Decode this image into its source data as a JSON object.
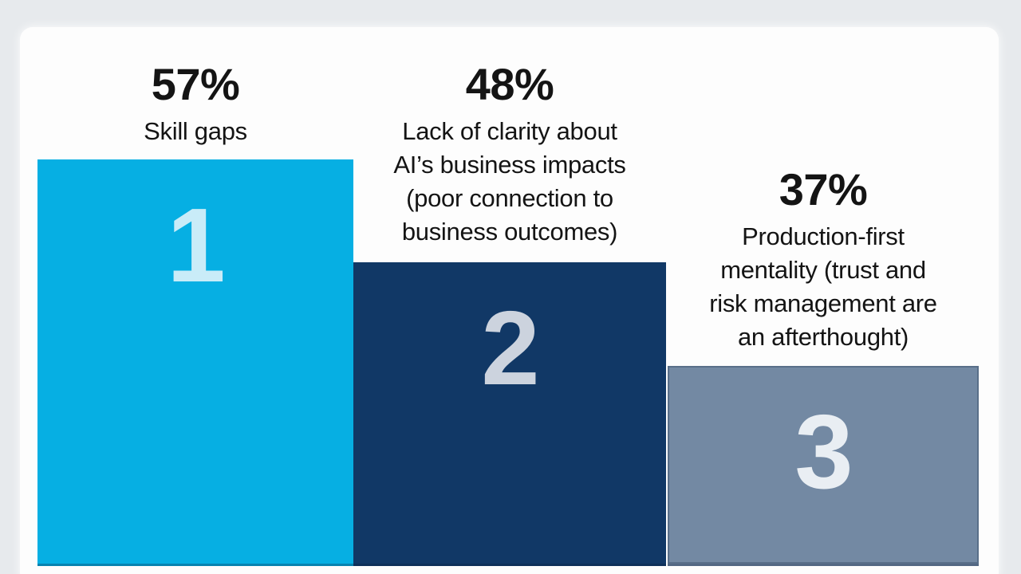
{
  "page": {
    "background_color": "#e7eaed",
    "card_background_color": "#fdfdfd",
    "text_color": "#141414"
  },
  "chart_data": {
    "type": "bar",
    "style": "podium infographic, three adjacent vertical bars descending left to right, rank number inside each bar, percentage and description above each bar",
    "title": "",
    "xlabel": "",
    "ylabel": "",
    "unit": "%",
    "legend": false,
    "axes_visible": false,
    "categories": [
      "Skill gaps",
      "Lack of clarity about AI’s business impacts (poor connection to business outcomes)",
      "Production-first mentality (trust and risk management are an afterthought)"
    ],
    "values": [
      57,
      48,
      37
    ],
    "value_labels": [
      "57%",
      "48%",
      "37%"
    ],
    "rank_labels": [
      "1",
      "2",
      "3"
    ],
    "bar_colors": [
      "#06afe3",
      "#113866",
      "#7389a3"
    ],
    "rank_text_colors": [
      "#c9ecf8",
      "#ccd3de",
      "#e9eef3"
    ]
  },
  "bars": [
    {
      "pct": "57%",
      "rank": "1",
      "color": "#06afe3",
      "rank_color": "#c9ecf8",
      "lines": [
        "Skill gaps"
      ]
    },
    {
      "pct": "48%",
      "rank": "2",
      "color": "#113866",
      "rank_color": "#ccd3de",
      "lines": [
        "Lack of clarity about",
        "AI’s business impacts",
        "(poor connection to",
        "business outcomes)"
      ]
    },
    {
      "pct": "37%",
      "rank": "3",
      "color": "#7389a3",
      "rank_color": "#e9eef3",
      "lines": [
        "Production-first",
        "mentality (trust and",
        "risk management are",
        "an afterthought)"
      ]
    }
  ]
}
